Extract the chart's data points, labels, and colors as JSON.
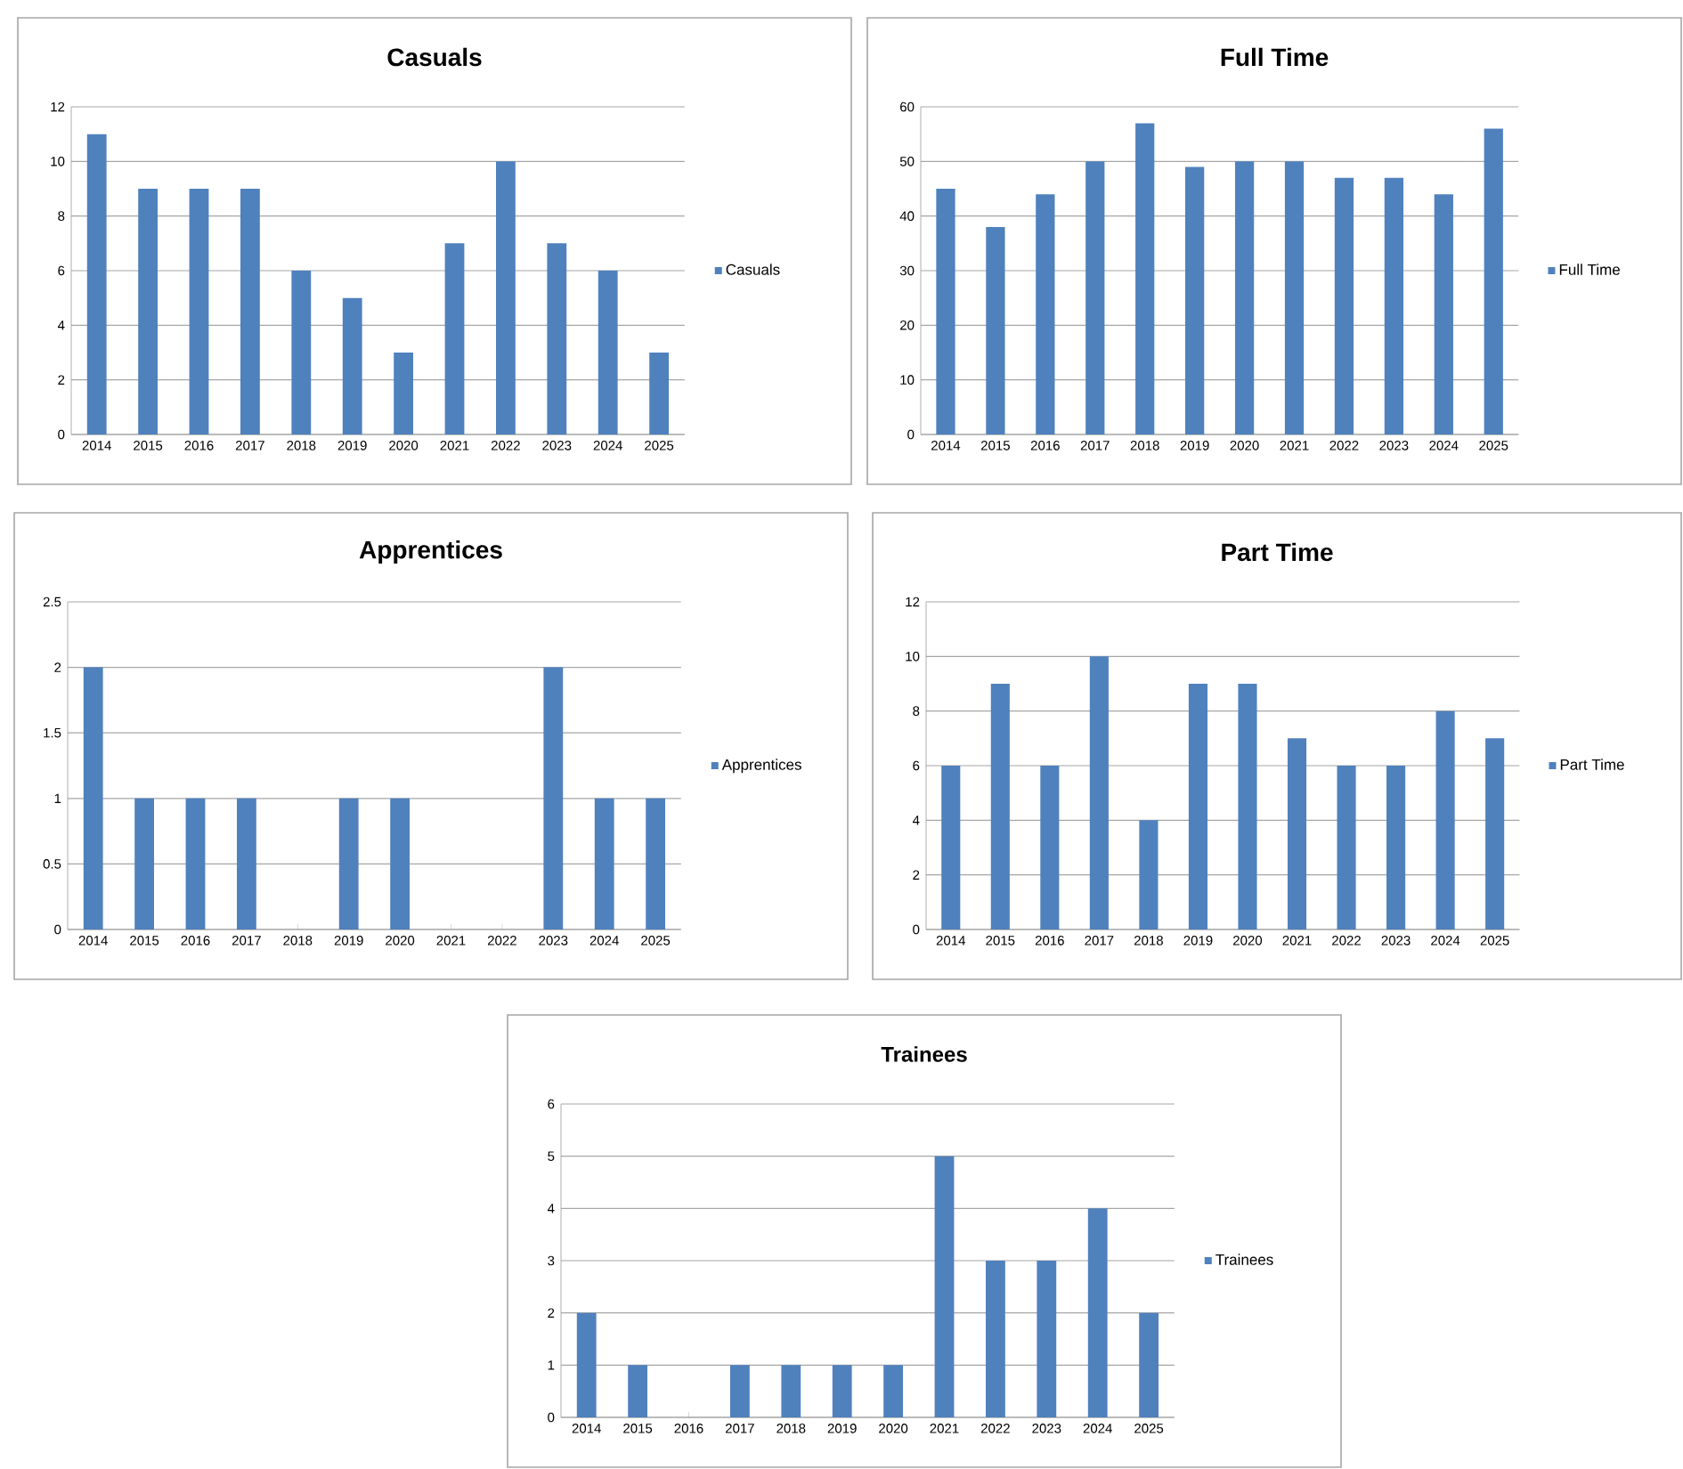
{
  "chart_data": [
    {
      "type": "bar",
      "title": "Casuals",
      "categories": [
        "2014",
        "2015",
        "2016",
        "2017",
        "2018",
        "2019",
        "2020",
        "2021",
        "2022",
        "2023",
        "2024",
        "2025"
      ],
      "series": [
        {
          "name": "Casuals",
          "color": "#4f81bd",
          "values": [
            11,
            9,
            9,
            9,
            6,
            5,
            3,
            7,
            10,
            7,
            6,
            3
          ]
        }
      ],
      "ylim": [
        0,
        12
      ],
      "yticks": [
        0,
        2,
        4,
        6,
        8,
        10,
        12
      ],
      "grid": "y",
      "legend": "right"
    },
    {
      "type": "bar",
      "title": "Full Time",
      "categories": [
        "2014",
        "2015",
        "2016",
        "2017",
        "2018",
        "2019",
        "2020",
        "2021",
        "2022",
        "2023",
        "2024",
        "2025"
      ],
      "series": [
        {
          "name": "Full Time",
          "color": "#4f81bd",
          "values": [
            45,
            38,
            44,
            50,
            57,
            49,
            50,
            50,
            47,
            47,
            44,
            56
          ]
        }
      ],
      "ylim": [
        0,
        60
      ],
      "yticks": [
        0,
        10,
        20,
        30,
        40,
        50,
        60
      ],
      "grid": "y",
      "legend": "right"
    },
    {
      "type": "bar",
      "title": "Apprentices",
      "categories": [
        "2014",
        "2015",
        "2016",
        "2017",
        "2018",
        "2019",
        "2020",
        "2021",
        "2022",
        "2023",
        "2024",
        "2025"
      ],
      "series": [
        {
          "name": "Apprentices",
          "color": "#4f81bd",
          "values": [
            2,
            1,
            1,
            1,
            0,
            1,
            1,
            0,
            0,
            2,
            1,
            1
          ]
        }
      ],
      "ylim": [
        0,
        2.5
      ],
      "yticks": [
        0,
        0.5,
        1,
        1.5,
        2,
        2.5
      ],
      "grid": "y",
      "legend": "right"
    },
    {
      "type": "bar",
      "title": "Part Time",
      "categories": [
        "2014",
        "2015",
        "2016",
        "2017",
        "2018",
        "2019",
        "2020",
        "2021",
        "2022",
        "2023",
        "2024",
        "2025"
      ],
      "series": [
        {
          "name": "Part Time",
          "color": "#4f81bd",
          "values": [
            6,
            9,
            6,
            10,
            4,
            9,
            9,
            7,
            6,
            6,
            8,
            7
          ]
        }
      ],
      "ylim": [
        0,
        12
      ],
      "yticks": [
        0,
        2,
        4,
        6,
        8,
        10,
        12
      ],
      "grid": "y",
      "legend": "right"
    },
    {
      "type": "bar",
      "title": "Trainees",
      "categories": [
        "2014",
        "2015",
        "2016",
        "2017",
        "2018",
        "2019",
        "2020",
        "2021",
        "2022",
        "2023",
        "2024",
        "2025"
      ],
      "series": [
        {
          "name": "Trainees",
          "color": "#4f81bd",
          "values": [
            2,
            1,
            0,
            1,
            1,
            1,
            1,
            5,
            3,
            3,
            4,
            2
          ]
        }
      ],
      "ylim": [
        0,
        6
      ],
      "yticks": [
        0,
        1,
        2,
        3,
        4,
        5,
        6
      ],
      "grid": "y",
      "legend": "right"
    }
  ]
}
